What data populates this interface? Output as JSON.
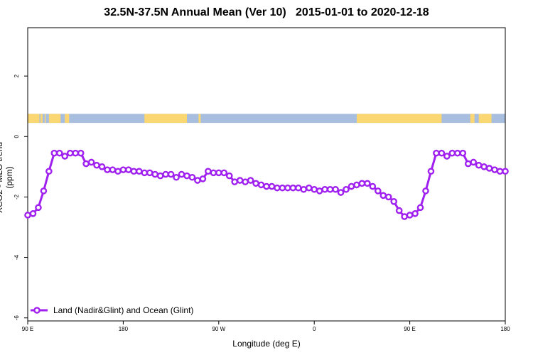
{
  "chart_data": {
    "type": "line",
    "title": "32.5N-37.5N Annual Mean (Ver 10)   2015-01-01 to 2020-12-18",
    "xlabel": "Longitude (deg E)",
    "ylabel": "XCO2 - MLO trend (ppm)",
    "x_tick_labels": [
      "90 E",
      "180",
      "90 W",
      "0",
      "90 E",
      "180"
    ],
    "y_tick_labels": [
      "2",
      "0",
      "-2",
      "-4",
      "-6"
    ],
    "y_ticks": [
      2,
      0,
      -2,
      -4,
      -6
    ],
    "x_range_label": "90 E to 180 (through 450)",
    "ylim": [
      -6.1,
      3.6
    ],
    "grid": false,
    "legend_position": "bottom-left",
    "series": [
      {
        "name": "Land (Nadir&Glint) and Ocean (Glint)",
        "color": "#a020f0",
        "x": [
          90,
          95,
          100,
          105,
          110,
          115,
          120,
          125,
          130,
          135,
          140,
          145,
          150,
          155,
          160,
          165,
          170,
          175,
          180,
          185,
          190,
          195,
          200,
          205,
          210,
          215,
          220,
          225,
          230,
          235,
          240,
          245,
          250,
          255,
          260,
          265,
          270,
          275,
          280,
          285,
          290,
          295,
          300,
          305,
          310,
          315,
          320,
          325,
          330,
          335,
          340,
          345,
          350,
          355,
          360,
          365,
          370,
          375,
          380,
          385,
          390,
          395,
          400,
          405,
          410,
          415,
          420,
          425,
          430,
          435,
          440,
          445,
          450,
          455,
          460,
          465,
          470,
          475,
          480,
          485,
          490,
          495,
          500,
          505,
          510,
          515,
          520,
          525,
          530,
          535,
          540
        ],
        "values": [
          -2.6,
          -2.55,
          -2.35,
          -1.8,
          -1.15,
          -0.55,
          -0.55,
          -0.65,
          -0.55,
          -0.55,
          -0.55,
          -0.9,
          -0.85,
          -0.95,
          -1.0,
          -1.1,
          -1.1,
          -1.15,
          -1.1,
          -1.1,
          -1.15,
          -1.15,
          -1.2,
          -1.2,
          -1.25,
          -1.3,
          -1.25,
          -1.25,
          -1.35,
          -1.25,
          -1.3,
          -1.35,
          -1.45,
          -1.4,
          -1.15,
          -1.2,
          -1.2,
          -1.2,
          -1.3,
          -1.5,
          -1.45,
          -1.5,
          -1.45,
          -1.55,
          -1.6,
          -1.65,
          -1.65,
          -1.7,
          -1.7,
          -1.7,
          -1.7,
          -1.7,
          -1.75,
          -1.7,
          -1.75,
          -1.8,
          -1.75,
          -1.75,
          -1.75,
          -1.85,
          -1.75,
          -1.65,
          -1.6,
          -1.55,
          -1.55,
          -1.65,
          -1.8,
          -1.95,
          -2.0,
          -2.15,
          -2.45,
          -2.65,
          -2.6,
          -2.55,
          -2.35,
          -1.8,
          -1.15,
          -0.55,
          -0.55,
          -0.65,
          -0.55,
          -0.55,
          -0.55,
          -0.9,
          -0.85,
          -0.95,
          -1.0,
          -1.05,
          -1.1,
          -1.15,
          -1.15
        ]
      }
    ],
    "land_ocean_strip": {
      "y_range": [
        0.45,
        0.75
      ],
      "ocean_color": "#a8bedf",
      "land_color": "#fbd774",
      "land_x_ranges": [
        [
          90,
          101
        ],
        [
          102,
          104
        ],
        [
          106,
          107
        ],
        [
          110,
          121
        ],
        [
          125,
          129
        ],
        [
          200,
          240
        ],
        [
          251,
          253
        ],
        [
          400,
          480
        ],
        [
          507,
          511
        ],
        [
          515,
          527
        ]
      ]
    }
  }
}
